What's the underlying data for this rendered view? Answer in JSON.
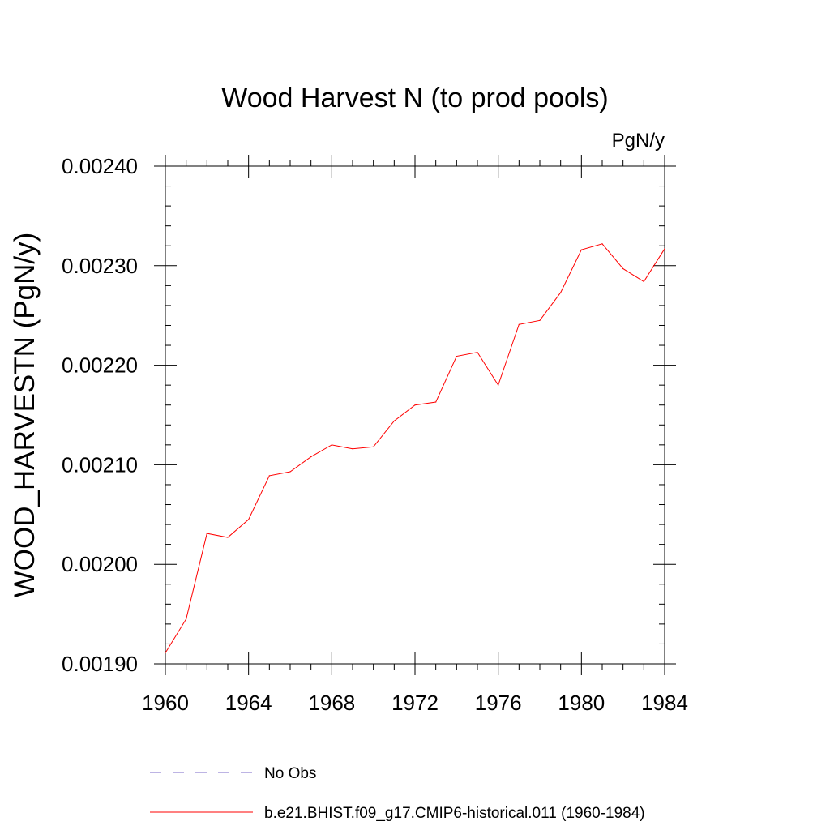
{
  "chart_data": {
    "type": "line",
    "title": "Wood Harvest N (to prod pools)",
    "units_label": "PgN/y",
    "ylabel": "WOOD_HARVESTN  (PgN/y)",
    "xlabel": "",
    "xlim": [
      1960,
      1984
    ],
    "ylim": [
      0.0019,
      0.0024
    ],
    "x_ticks": [
      1960,
      1964,
      1968,
      1972,
      1976,
      1980,
      1984
    ],
    "y_ticks": [
      0.0019,
      0.002,
      0.0021,
      0.0022,
      0.0023,
      0.0024
    ],
    "x_tick_labels": [
      "1960",
      "1964",
      "1968",
      "1972",
      "1976",
      "1980",
      "1984"
    ],
    "y_tick_labels": [
      "0.00190",
      "0.00200",
      "0.00210",
      "0.00220",
      "0.00230",
      "0.00240"
    ],
    "x": [
      1960,
      1961,
      1962,
      1963,
      1964,
      1965,
      1966,
      1967,
      1968,
      1969,
      1970,
      1971,
      1972,
      1973,
      1974,
      1975,
      1976,
      1977,
      1978,
      1979,
      1980,
      1981,
      1982,
      1983,
      1984
    ],
    "series": [
      {
        "name": "b.e21.BHIST.f09_g17.CMIP6-historical.011 (1960-1984)",
        "color": "#ff0000",
        "dash": "solid",
        "values": [
          0.001911,
          0.001945,
          0.002031,
          0.002027,
          0.002045,
          0.002089,
          0.002093,
          0.002108,
          0.00212,
          0.002116,
          0.002118,
          0.002144,
          0.00216,
          0.002163,
          0.002209,
          0.002213,
          0.00218,
          0.002241,
          0.002245,
          0.002273,
          0.002316,
          0.002322,
          0.002297,
          0.002284,
          0.002317
        ]
      }
    ],
    "legend": {
      "placement": "bottom",
      "entries": [
        {
          "label": "No Obs",
          "color": "#7b68c8",
          "dash": "dashed"
        },
        {
          "label": "b.e21.BHIST.f09_g17.CMIP6-historical.011 (1960-1984)",
          "color": "#ff0000",
          "dash": "solid"
        }
      ]
    },
    "grid": false
  }
}
